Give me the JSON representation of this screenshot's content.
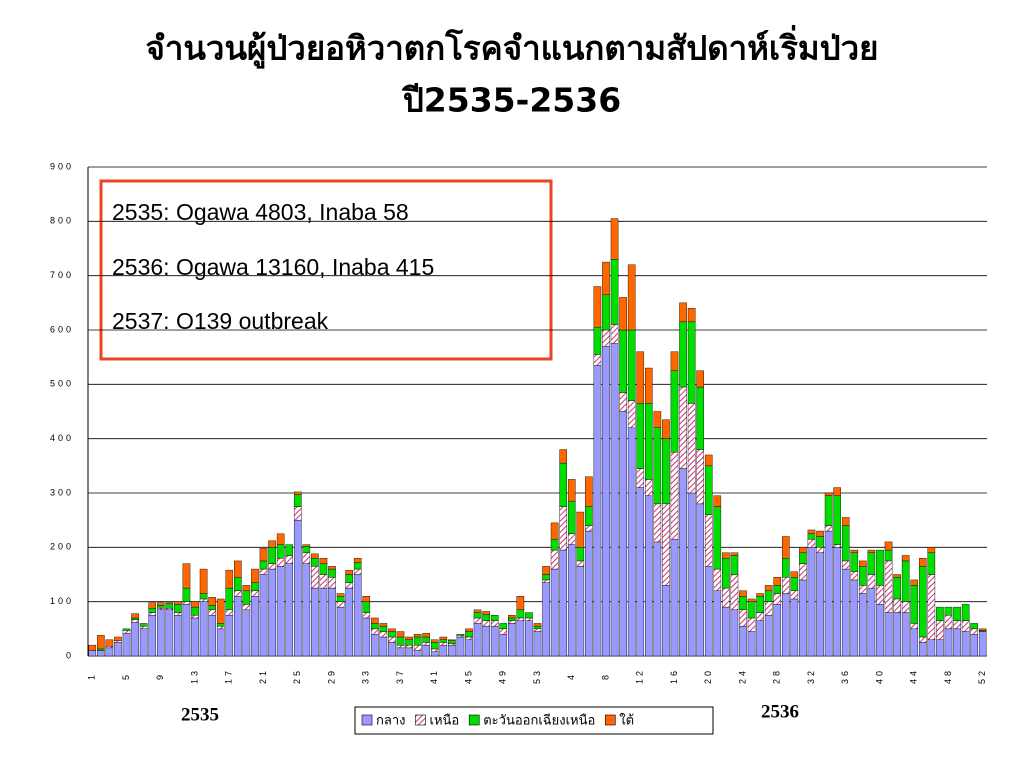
{
  "chart_data": {
    "type": "stacked_bar",
    "title": "จำนวนผู้ป่วยอหิวาตกโรคจำแนกตามสัปดาห์เริ่มป่วย",
    "subtitle": "ปี2535-2536",
    "annotations": [
      "2535: Ogawa 4803, Inaba 58",
      "2536: Ogawa 13160, Inaba 415",
      "2537: O139 outbreak"
    ],
    "year_labels": [
      "2535",
      "2536"
    ],
    "categories": [
      "1",
      null,
      null,
      null,
      "5",
      null,
      null,
      null,
      "9",
      null,
      null,
      null,
      "13",
      null,
      null,
      null,
      "17",
      null,
      null,
      null,
      "21",
      null,
      null,
      null,
      "25",
      null,
      null,
      null,
      "29",
      null,
      null,
      null,
      "33",
      null,
      null,
      null,
      "37",
      null,
      null,
      null,
      "41",
      null,
      null,
      null,
      "45",
      null,
      null,
      null,
      "49",
      null,
      null,
      null,
      "53",
      null,
      null,
      null,
      "4",
      null,
      null,
      null,
      "8",
      null,
      null,
      null,
      "12",
      null,
      null,
      null,
      "16",
      null,
      null,
      null,
      "20",
      null,
      null,
      null,
      "24",
      null,
      null,
      null,
      "28",
      null,
      null,
      null,
      "32",
      null,
      null,
      null,
      "36",
      null,
      null,
      null,
      "40",
      null,
      null,
      null,
      "44",
      null,
      null,
      null,
      "48",
      null,
      null,
      null,
      "52"
    ],
    "series": [
      {
        "name": "กลาง",
        "color": "#9999ff",
        "values": [
          10,
          10,
          15,
          25,
          42,
          62,
          50,
          75,
          85,
          85,
          75,
          95,
          70,
          100,
          75,
          50,
          75,
          110,
          85,
          110,
          150,
          160,
          165,
          170,
          250,
          170,
          125,
          125,
          125,
          90,
          125,
          150,
          70,
          40,
          35,
          25,
          15,
          15,
          10,
          20,
          8,
          20,
          20,
          35,
          30,
          60,
          55,
          55,
          40,
          60,
          65,
          65,
          45,
          135,
          160,
          195,
          205,
          165,
          230,
          535,
          570,
          575,
          450,
          420,
          310,
          295,
          210,
          130,
          215,
          345,
          300,
          280,
          165,
          120,
          90,
          85,
          55,
          45,
          65,
          75,
          95,
          115,
          105,
          140,
          200,
          190,
          230,
          200,
          160,
          140,
          115,
          125,
          95,
          80,
          80,
          80,
          50,
          25,
          30,
          30,
          50,
          50,
          45,
          40,
          45
        ]
      },
      {
        "name": "เหนือ",
        "color": "#cc3377",
        "hatch": true,
        "values": [
          0,
          0,
          3,
          3,
          5,
          5,
          5,
          5,
          3,
          3,
          5,
          5,
          5,
          5,
          10,
          5,
          10,
          10,
          10,
          10,
          10,
          10,
          15,
          15,
          25,
          20,
          40,
          25,
          20,
          10,
          10,
          10,
          10,
          10,
          10,
          10,
          5,
          5,
          10,
          5,
          5,
          5,
          3,
          3,
          5,
          10,
          10,
          10,
          10,
          5,
          5,
          5,
          5,
          5,
          35,
          80,
          20,
          10,
          10,
          20,
          30,
          35,
          35,
          50,
          35,
          30,
          70,
          150,
          160,
          150,
          165,
          100,
          95,
          40,
          35,
          65,
          30,
          25,
          15,
          25,
          20,
          30,
          15,
          30,
          15,
          10,
          10,
          5,
          15,
          15,
          15,
          25,
          35,
          95,
          25,
          20,
          10,
          10,
          120,
          35,
          25,
          15,
          20,
          10,
          0
        ]
      },
      {
        "name": "ตะวันออกเฉียงเหนือ",
        "color": "#00dd00",
        "values": [
          0,
          3,
          0,
          0,
          3,
          3,
          5,
          8,
          5,
          8,
          15,
          25,
          15,
          10,
          8,
          5,
          40,
          25,
          25,
          15,
          15,
          30,
          25,
          20,
          22,
          12,
          15,
          20,
          15,
          10,
          15,
          12,
          20,
          10,
          10,
          10,
          15,
          10,
          15,
          10,
          12,
          5,
          5,
          2,
          10,
          10,
          12,
          10,
          10,
          5,
          15,
          10,
          5,
          10,
          20,
          80,
          60,
          25,
          35,
          50,
          65,
          120,
          115,
          130,
          120,
          140,
          140,
          120,
          150,
          120,
          150,
          115,
          90,
          115,
          55,
          35,
          25,
          30,
          30,
          20,
          15,
          35,
          25,
          20,
          10,
          20,
          55,
          90,
          65,
          35,
          35,
          40,
          65,
          20,
          40,
          75,
          70,
          130,
          40,
          25,
          15,
          25,
          30,
          10,
          2
        ]
      },
      {
        "name": "ใต้",
        "color": "#ff6600",
        "values": [
          10,
          25,
          12,
          7,
          0,
          8,
          0,
          10,
          5,
          2,
          5,
          45,
          10,
          45,
          15,
          45,
          33,
          30,
          10,
          25,
          23,
          12,
          20,
          0,
          5,
          3,
          8,
          10,
          5,
          5,
          8,
          8,
          10,
          10,
          5,
          5,
          10,
          5,
          5,
          7,
          5,
          5,
          2,
          0,
          5,
          5,
          5,
          0,
          0,
          5,
          25,
          0,
          5,
          15,
          30,
          25,
          40,
          65,
          55,
          75,
          60,
          75,
          60,
          120,
          95,
          65,
          30,
          35,
          35,
          35,
          25,
          30,
          20,
          20,
          10,
          5,
          10,
          5,
          5,
          10,
          15,
          40,
          10,
          10,
          7,
          10,
          5,
          15,
          15,
          5,
          10,
          5,
          0,
          15,
          5,
          10,
          10,
          15,
          10,
          0,
          0,
          0,
          0,
          0,
          3
        ]
      }
    ],
    "ylim": [
      0,
      900
    ],
    "yticks": [
      0,
      100,
      200,
      300,
      400,
      500,
      600,
      700,
      800,
      900
    ],
    "grid": true,
    "legend": "bottom"
  }
}
